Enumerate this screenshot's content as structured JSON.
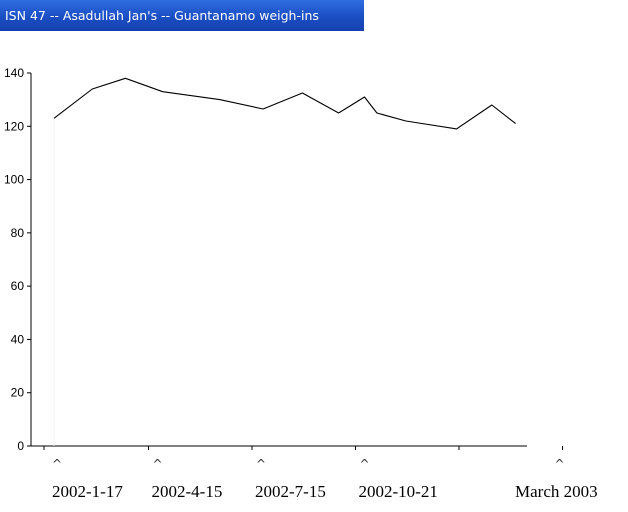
{
  "window": {
    "title": "ISN 47 -- Asadullah Jan's -- Guantanamo weigh-ins"
  },
  "chart_data": {
    "type": "line",
    "title": "ISN 47 -- Asadullah Jan's -- Guantanamo weigh-ins",
    "xlabel": "",
    "ylabel": "",
    "ylim": [
      0,
      140
    ],
    "yticks": [
      0,
      20,
      40,
      60,
      80,
      100,
      120,
      140
    ],
    "grid": false,
    "legend": "none",
    "x_date_labels": [
      "2002-1-17",
      "2002-4-15",
      "2002-7-15",
      "2002-10-21",
      "March 2003"
    ],
    "x_date_label_positions": [
      0,
      1,
      2,
      3,
      5
    ],
    "x_caret_marker": "^",
    "series": [
      {
        "color": "#000000",
        "values": [
          {
            "x": 0.0,
            "y": 123
          },
          {
            "x": 0.37,
            "y": 134
          },
          {
            "x": 0.69,
            "y": 138
          },
          {
            "x": 1.05,
            "y": 133
          },
          {
            "x": 1.6,
            "y": 130
          },
          {
            "x": 2.02,
            "y": 126.5
          },
          {
            "x": 2.4,
            "y": 132.5
          },
          {
            "x": 2.75,
            "y": 125
          },
          {
            "x": 3.0,
            "y": 131
          },
          {
            "x": 3.12,
            "y": 125
          },
          {
            "x": 3.4,
            "y": 122
          },
          {
            "x": 3.89,
            "y": 119
          },
          {
            "x": 4.23,
            "y": 128
          },
          {
            "x": 4.46,
            "y": 121
          }
        ]
      }
    ]
  }
}
